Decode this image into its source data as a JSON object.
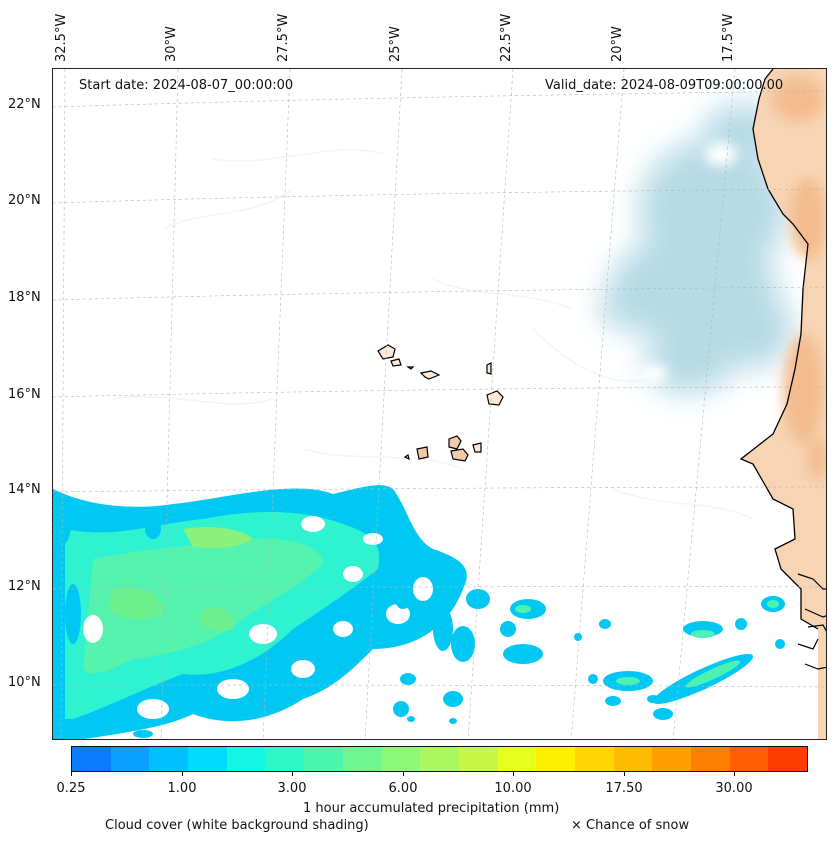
{
  "map": {
    "start_date": "Start date: 2024-08-07_00:00:00",
    "valid_date": "Valid_date: 2024-08-09T09:00:00.00",
    "lon_labels": [
      "32.5°W",
      "30°W",
      "27.5°W",
      "25°W",
      "22.5°W",
      "20°W",
      "17.5°W"
    ],
    "lat_labels": [
      "22°N",
      "20°N",
      "18°N",
      "16°N",
      "14°N",
      "12°N",
      "10°N"
    ],
    "extent": {
      "lon_min": -32.6,
      "lon_max": -15.6,
      "lat_min": 8.8,
      "lat_max": 22.8
    },
    "land_color": "#f6c9a3",
    "cloud_color": "#b7dbe6",
    "coast_color": "#000000"
  },
  "colorbar": {
    "label": "1 hour accumulated precipitation (mm)",
    "tick_labels": [
      "0.25",
      "1.00",
      "3.00",
      "6.00",
      "10.00",
      "17.50",
      "30.00"
    ],
    "colors": [
      "#0a7dff",
      "#0aa0ff",
      "#00c0ff",
      "#00dcff",
      "#16f5e6",
      "#2ef7c8",
      "#4bf7ad",
      "#6ef791",
      "#8cf778",
      "#aaf760",
      "#c8f748",
      "#e6ff1e",
      "#fff000",
      "#ffd700",
      "#ffbc00",
      "#ff9f00",
      "#ff7f00",
      "#ff5f00",
      "#ff3c00"
    ]
  },
  "captions": {
    "cloud_cover": "Cloud cover (white background shading)",
    "snow": "× Chance of snow"
  }
}
